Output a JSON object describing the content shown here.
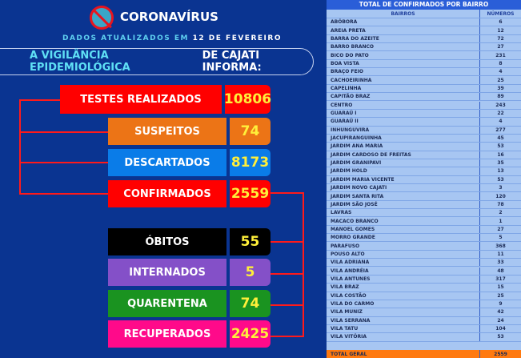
{
  "header": {
    "title": "CORONAVÍRUS",
    "updated_prefix": "DADOS ATUALIZADOS EM",
    "updated_date": "12 DE FEVEREIRO",
    "banner_highlight": "A VIGILÂNCIA EPIDEMIOLÓGICA",
    "banner_rest": "DE CAJATI INFORMA:"
  },
  "stats": [
    {
      "label": "TESTES REALIZADOS",
      "value": "10806",
      "color": "#ff0000"
    },
    {
      "label": "SUSPEITOS",
      "value": "74",
      "color": "#ec7416"
    },
    {
      "label": "DESCARTADOS",
      "value": "8173",
      "color": "#0a7ce8"
    },
    {
      "label": "CONFIRMADOS",
      "value": "2559",
      "color": "#ff0000"
    },
    {
      "label": "ÓBITOS",
      "value": "55",
      "color": "#000000"
    },
    {
      "label": "INTERNADOS",
      "value": "5",
      "color": "#8450c8"
    },
    {
      "label": "QUARENTENA",
      "value": "74",
      "color": "#1a9320"
    },
    {
      "label": "RECUPERADOS",
      "value": "2425",
      "color": "#ff0a8a"
    }
  ],
  "table": {
    "title": "TOTAL DE CONFIRMADOS POR BAIRRO",
    "col_bairros": "BAIRROS",
    "col_numeros": "NÚMEROS",
    "rows": [
      [
        "ABÓBORA",
        "6"
      ],
      [
        "AREIA PRETA",
        "12"
      ],
      [
        "BARRA DO AZEITE",
        "72"
      ],
      [
        "BARRO BRANCO",
        "27"
      ],
      [
        "BICO DO PATO",
        "231"
      ],
      [
        "BOA VISTA",
        "8"
      ],
      [
        "BRAÇO FEIO",
        "4"
      ],
      [
        "CACHOEIRINHA",
        "25"
      ],
      [
        "CAPELINHA",
        "39"
      ],
      [
        "CAPITÃO BRAZ",
        "89"
      ],
      [
        "CENTRO",
        "243"
      ],
      [
        "GUARAÚ I",
        "22"
      ],
      [
        "GUARAÚ II",
        "4"
      ],
      [
        "INHUNGUVIRA",
        "277"
      ],
      [
        "JACUPIRANGUINHA",
        "45"
      ],
      [
        "JARDIM ANA MARIA",
        "53"
      ],
      [
        "JARDIM CARDOSO DE FREITAS",
        "16"
      ],
      [
        "JARDIM GRANIPAVI",
        "35"
      ],
      [
        "JARDIM HOLD",
        "13"
      ],
      [
        "JARDIM MARIA VICENTE",
        "53"
      ],
      [
        "JARDIM NOVO CAJATI",
        "3"
      ],
      [
        "JARDIM SANTA RITA",
        "120"
      ],
      [
        "JARDIM SÃO JOSÉ",
        "78"
      ],
      [
        "LAVRAS",
        "2"
      ],
      [
        "MACACO BRANCO",
        "1"
      ],
      [
        "MANOEL GOMES",
        "27"
      ],
      [
        "MORRO GRANDE",
        "5"
      ],
      [
        "PARAFUSO",
        "368"
      ],
      [
        "POUSO ALTO",
        "11"
      ],
      [
        "VILA ADRIANA",
        "33"
      ],
      [
        "VILA ANDRÉIA",
        "48"
      ],
      [
        "VILA ANTUNES",
        "317"
      ],
      [
        "VILA BRAZ",
        "15"
      ],
      [
        "VILA COSTÃO",
        "25"
      ],
      [
        "VILA DO CARMO",
        "9"
      ],
      [
        "VILA MUNIZ",
        "42"
      ],
      [
        "VILA SERRANA",
        "24"
      ],
      [
        "VILA TATU",
        "104"
      ],
      [
        "VILA VITÓRIA",
        "53"
      ]
    ],
    "total_label": "TOTAL GERAL",
    "total_value": "2559"
  }
}
